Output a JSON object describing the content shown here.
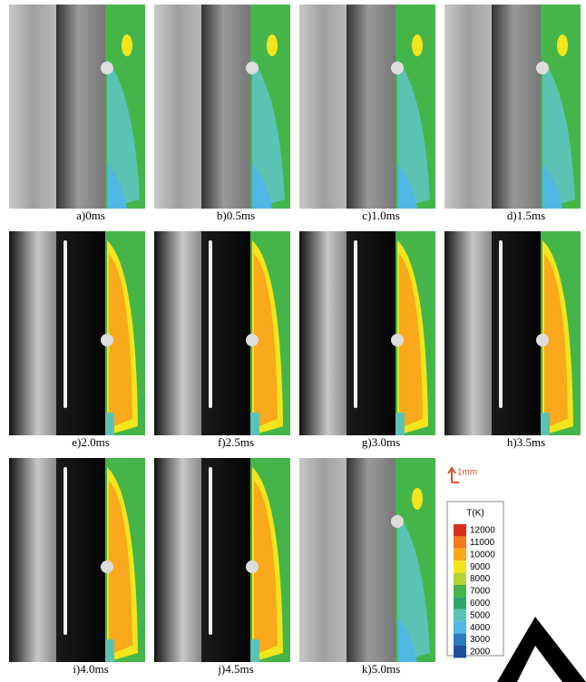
{
  "panels": [
    {
      "label": "a)0ms"
    },
    {
      "label": "b)0.5ms"
    },
    {
      "label": "c)1.0ms"
    },
    {
      "label": "d)1.5ms"
    },
    {
      "label": "e)2.0ms"
    },
    {
      "label": "f)2.5ms"
    },
    {
      "label": "g)3.0ms"
    },
    {
      "label": "h)3.5ms"
    },
    {
      "label": "i)4.0ms"
    },
    {
      "label": "j)4.5ms"
    },
    {
      "label": "k)5.0ms"
    }
  ],
  "scale_bar": "1mm",
  "legend": {
    "title": "T(K)",
    "items": [
      {
        "label": 12000,
        "color": "#d7301f"
      },
      {
        "label": 11000,
        "color": "#f47a1f"
      },
      {
        "label": 10000,
        "color": "#f9a91b"
      },
      {
        "label": 9000,
        "color": "#f3e51c"
      },
      {
        "label": 8000,
        "color": "#b5d334"
      },
      {
        "label": 7000,
        "color": "#45b549"
      },
      {
        "label": 6000,
        "color": "#2fa66b"
      },
      {
        "label": 5000,
        "color": "#5cc2b4"
      },
      {
        "label": 4000,
        "color": "#4fb7e3"
      },
      {
        "label": 3000,
        "color": "#2b7cc2"
      },
      {
        "label": 2000,
        "color": "#1f4f9f"
      }
    ]
  }
}
